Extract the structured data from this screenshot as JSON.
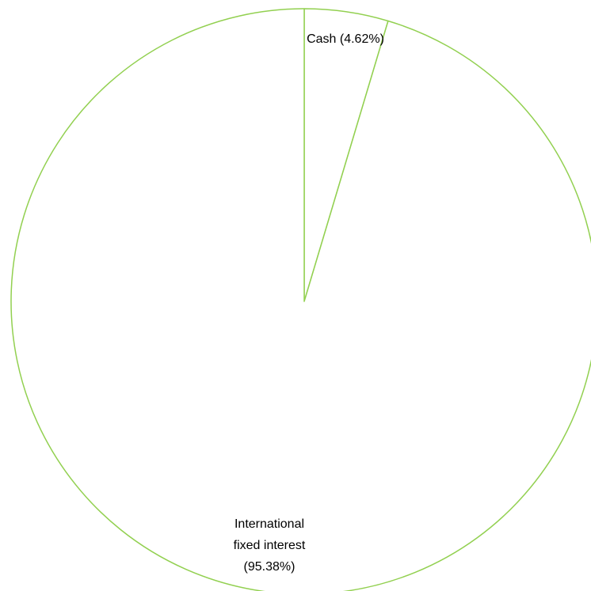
{
  "chart_data": {
    "type": "pie",
    "title": "",
    "slices": [
      {
        "label": "Cash",
        "value": 4.62,
        "label_lines": [
          "Cash (4.62%)"
        ],
        "fill": "#ffffff",
        "stroke": "#92d050"
      },
      {
        "label": "International fixed interest",
        "value": 95.38,
        "label_lines": [
          "International",
          "fixed interest",
          "(95.38%)"
        ],
        "fill": "#ffffff",
        "stroke": "#92d050"
      }
    ],
    "start_angle_deg": 0,
    "direction": "clockwise",
    "legend": "none"
  }
}
